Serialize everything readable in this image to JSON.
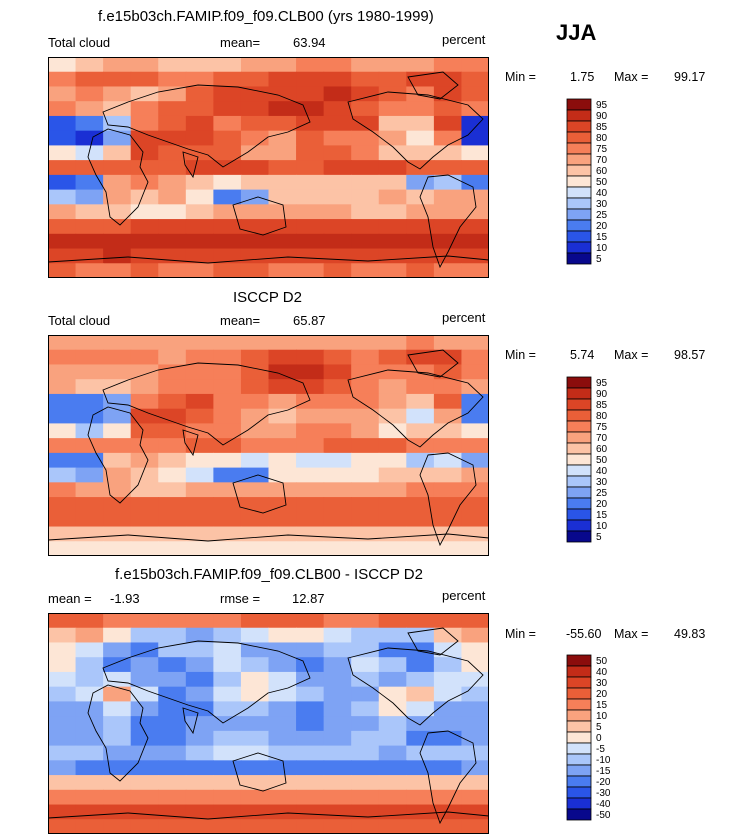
{
  "season": "JJA",
  "palette_clouds": [
    "#08088c",
    "#1a2fd4",
    "#2a55e8",
    "#4a7cf0",
    "#7ea3f4",
    "#aac6fa",
    "#d2e2fb",
    "#fde6d6",
    "#fcc3a6",
    "#f9a27e",
    "#f67f59",
    "#ea5f38",
    "#dc4526",
    "#c32c18",
    "#8b0d0c"
  ],
  "palette_diff": [
    "#08088c",
    "#1a2fd4",
    "#2a55e8",
    "#4a7cf0",
    "#7ea3f4",
    "#aac6fa",
    "#d2e2fb",
    "#fde6d6",
    "#fcc3a6",
    "#f9a27e",
    "#f67f59",
    "#ea5f38",
    "#dc4526",
    "#c32c18",
    "#8b0d0c"
  ],
  "chart_data": [
    {
      "type": "heatmap",
      "title": "f.e15b03ch.FAMIP.f09_f09.CLB00 (yrs 1980-1999)",
      "variable": "Total cloud",
      "stat_label": "mean=",
      "stat_value": "63.94",
      "units": "percent",
      "min_label": "Min =",
      "min": "1.75",
      "max_label": "Max =",
      "max": "99.17",
      "levels": [
        "5",
        "10",
        "15",
        "20",
        "25",
        "30",
        "40",
        "50",
        "60",
        "70",
        "75",
        "80",
        "85",
        "90",
        "95"
      ],
      "grid": [
        [
          7,
          8,
          9,
          9,
          8,
          8,
          8,
          9,
          9,
          10,
          10,
          9,
          9,
          9,
          10,
          10
        ],
        [
          10,
          11,
          11,
          11,
          10,
          10,
          11,
          11,
          12,
          12,
          12,
          11,
          11,
          12,
          12,
          11
        ],
        [
          9,
          10,
          9,
          8,
          9,
          11,
          12,
          12,
          12,
          12,
          13,
          12,
          11,
          10,
          12,
          11
        ],
        [
          10,
          9,
          8,
          10,
          11,
          11,
          12,
          12,
          13,
          13,
          12,
          11,
          10,
          10,
          11,
          10
        ],
        [
          2,
          3,
          5,
          10,
          11,
          12,
          10,
          11,
          11,
          12,
          12,
          12,
          8,
          8,
          12,
          1
        ],
        [
          2,
          1,
          4,
          12,
          12,
          12,
          11,
          10,
          9,
          11,
          10,
          10,
          9,
          7,
          10,
          1
        ],
        [
          7,
          6,
          8,
          12,
          11,
          11,
          11,
          9,
          9,
          11,
          11,
          10,
          8,
          8,
          8,
          7
        ],
        [
          11,
          11,
          11,
          11,
          11,
          12,
          12,
          12,
          11,
          11,
          12,
          12,
          12,
          11,
          11,
          11
        ],
        [
          2,
          3,
          9,
          10,
          9,
          8,
          7,
          8,
          8,
          8,
          8,
          8,
          8,
          4,
          5,
          3
        ],
        [
          5,
          4,
          9,
          8,
          9,
          7,
          3,
          4,
          8,
          8,
          8,
          8,
          9,
          8,
          9,
          9
        ],
        [
          9,
          8,
          8,
          7,
          7,
          8,
          9,
          9,
          9,
          9,
          9,
          8,
          8,
          9,
          9,
          9
        ],
        [
          11,
          11,
          11,
          12,
          12,
          12,
          12,
          12,
          12,
          12,
          12,
          12,
          12,
          12,
          12,
          12
        ],
        [
          13,
          13,
          13,
          13,
          13,
          13,
          13,
          13,
          13,
          13,
          13,
          13,
          13,
          13,
          13,
          13
        ],
        [
          12,
          12,
          13,
          12,
          12,
          12,
          12,
          12,
          12,
          12,
          12,
          12,
          12,
          12,
          12,
          12
        ],
        [
          11,
          10,
          10,
          11,
          10,
          10,
          11,
          11,
          10,
          10,
          11,
          10,
          10,
          11,
          10,
          10
        ]
      ]
    },
    {
      "type": "heatmap",
      "title": "ISCCP D2",
      "variable": "Total cloud",
      "stat_label": "mean=",
      "stat_value": "65.87",
      "units": "percent",
      "min_label": "Min =",
      "min": "5.74",
      "max_label": "Max =",
      "max": "98.57",
      "levels": [
        "5",
        "10",
        "15",
        "20",
        "25",
        "30",
        "40",
        "50",
        "60",
        "70",
        "75",
        "80",
        "85",
        "90",
        "95"
      ],
      "grid": [
        [
          9,
          9,
          9,
          9,
          9,
          9,
          9,
          9,
          9,
          9,
          9,
          9,
          9,
          10,
          9,
          9
        ],
        [
          10,
          10,
          10,
          10,
          9,
          10,
          10,
          11,
          12,
          12,
          11,
          10,
          11,
          12,
          12,
          10
        ],
        [
          9,
          9,
          9,
          9,
          10,
          10,
          10,
          11,
          13,
          13,
          12,
          10,
          10,
          10,
          11,
          10
        ],
        [
          9,
          8,
          8,
          9,
          10,
          10,
          10,
          11,
          12,
          12,
          11,
          10,
          9,
          10,
          10,
          9
        ],
        [
          3,
          3,
          4,
          10,
          11,
          12,
          10,
          10,
          9,
          10,
          10,
          10,
          9,
          8,
          11,
          3
        ],
        [
          3,
          3,
          4,
          12,
          12,
          11,
          10,
          9,
          8,
          9,
          9,
          9,
          8,
          6,
          9,
          3
        ],
        [
          7,
          5,
          7,
          11,
          11,
          10,
          10,
          9,
          9,
          10,
          10,
          9,
          7,
          8,
          8,
          7
        ],
        [
          10,
          10,
          10,
          10,
          10,
          11,
          11,
          10,
          10,
          10,
          11,
          11,
          11,
          10,
          10,
          10
        ],
        [
          3,
          3,
          8,
          9,
          8,
          7,
          7,
          6,
          7,
          6,
          6,
          7,
          7,
          5,
          6,
          4
        ],
        [
          5,
          4,
          9,
          8,
          7,
          6,
          3,
          3,
          7,
          7,
          7,
          7,
          8,
          8,
          8,
          9
        ],
        [
          10,
          9,
          9,
          8,
          8,
          9,
          9,
          9,
          9,
          9,
          9,
          9,
          9,
          10,
          10,
          10
        ],
        [
          11,
          11,
          11,
          11,
          11,
          11,
          11,
          11,
          11,
          11,
          11,
          11,
          11,
          11,
          11,
          11
        ],
        [
          11,
          11,
          11,
          11,
          11,
          11,
          11,
          11,
          11,
          11,
          11,
          11,
          11,
          11,
          11,
          11
        ],
        [
          8,
          8,
          8,
          8,
          8,
          8,
          8,
          8,
          8,
          8,
          8,
          8,
          8,
          8,
          8,
          8
        ],
        [
          7,
          7,
          7,
          7,
          7,
          7,
          7,
          7,
          7,
          7,
          7,
          7,
          7,
          7,
          7,
          7
        ]
      ]
    },
    {
      "type": "heatmap",
      "title": "f.e15b03ch.FAMIP.f09_f09.CLB00 - ISCCP D2",
      "variable": "",
      "stat_label": "mean =",
      "stat_value": "-1.93",
      "stat2_label": "rmse =",
      "stat2_value": "12.87",
      "units": "percent",
      "min_label": "Min =",
      "min": "-55.60",
      "max_label": "Max =",
      "max": "49.83",
      "levels": [
        "-50",
        "-40",
        "-30",
        "-20",
        "-15",
        "-10",
        "-5",
        "0",
        "5",
        "10",
        "15",
        "20",
        "30",
        "40",
        "50"
      ],
      "grid": [
        [
          11,
          11,
          10,
          10,
          10,
          10,
          10,
          11,
          11,
          11,
          10,
          10,
          11,
          11,
          11,
          11
        ],
        [
          8,
          9,
          7,
          5,
          5,
          4,
          5,
          6,
          7,
          7,
          6,
          5,
          5,
          5,
          8,
          9
        ],
        [
          7,
          6,
          4,
          3,
          5,
          5,
          6,
          4,
          4,
          4,
          5,
          5,
          3,
          3,
          6,
          7
        ],
        [
          7,
          5,
          3,
          4,
          3,
          4,
          6,
          5,
          4,
          3,
          4,
          6,
          5,
          3,
          5,
          7
        ],
        [
          6,
          5,
          6,
          4,
          4,
          3,
          5,
          7,
          6,
          4,
          4,
          5,
          4,
          5,
          6,
          6
        ],
        [
          5,
          6,
          9,
          6,
          3,
          4,
          6,
          7,
          6,
          5,
          4,
          4,
          7,
          8,
          6,
          5
        ],
        [
          4,
          4,
          6,
          4,
          3,
          3,
          5,
          5,
          4,
          3,
          4,
          5,
          7,
          6,
          4,
          4
        ],
        [
          4,
          4,
          5,
          3,
          3,
          4,
          4,
          4,
          4,
          3,
          4,
          4,
          5,
          4,
          4,
          4
        ],
        [
          4,
          4,
          5,
          3,
          3,
          4,
          5,
          5,
          4,
          4,
          4,
          5,
          5,
          3,
          3,
          4
        ],
        [
          5,
          5,
          4,
          4,
          4,
          5,
          6,
          6,
          5,
          5,
          5,
          5,
          4,
          5,
          5,
          5
        ],
        [
          4,
          3,
          3,
          3,
          3,
          3,
          3,
          3,
          3,
          3,
          3,
          3,
          3,
          3,
          3,
          4
        ],
        [
          8,
          8,
          8,
          8,
          8,
          8,
          8,
          8,
          8,
          8,
          8,
          8,
          8,
          8,
          8,
          8
        ],
        [
          10,
          10,
          10,
          10,
          10,
          10,
          10,
          10,
          10,
          10,
          10,
          10,
          10,
          10,
          10,
          10
        ],
        [
          12,
          12,
          12,
          12,
          12,
          12,
          12,
          12,
          12,
          12,
          12,
          12,
          12,
          12,
          12,
          12
        ],
        [
          11,
          11,
          11,
          11,
          11,
          11,
          11,
          11,
          11,
          11,
          11,
          11,
          11,
          11,
          11,
          11
        ]
      ]
    }
  ]
}
